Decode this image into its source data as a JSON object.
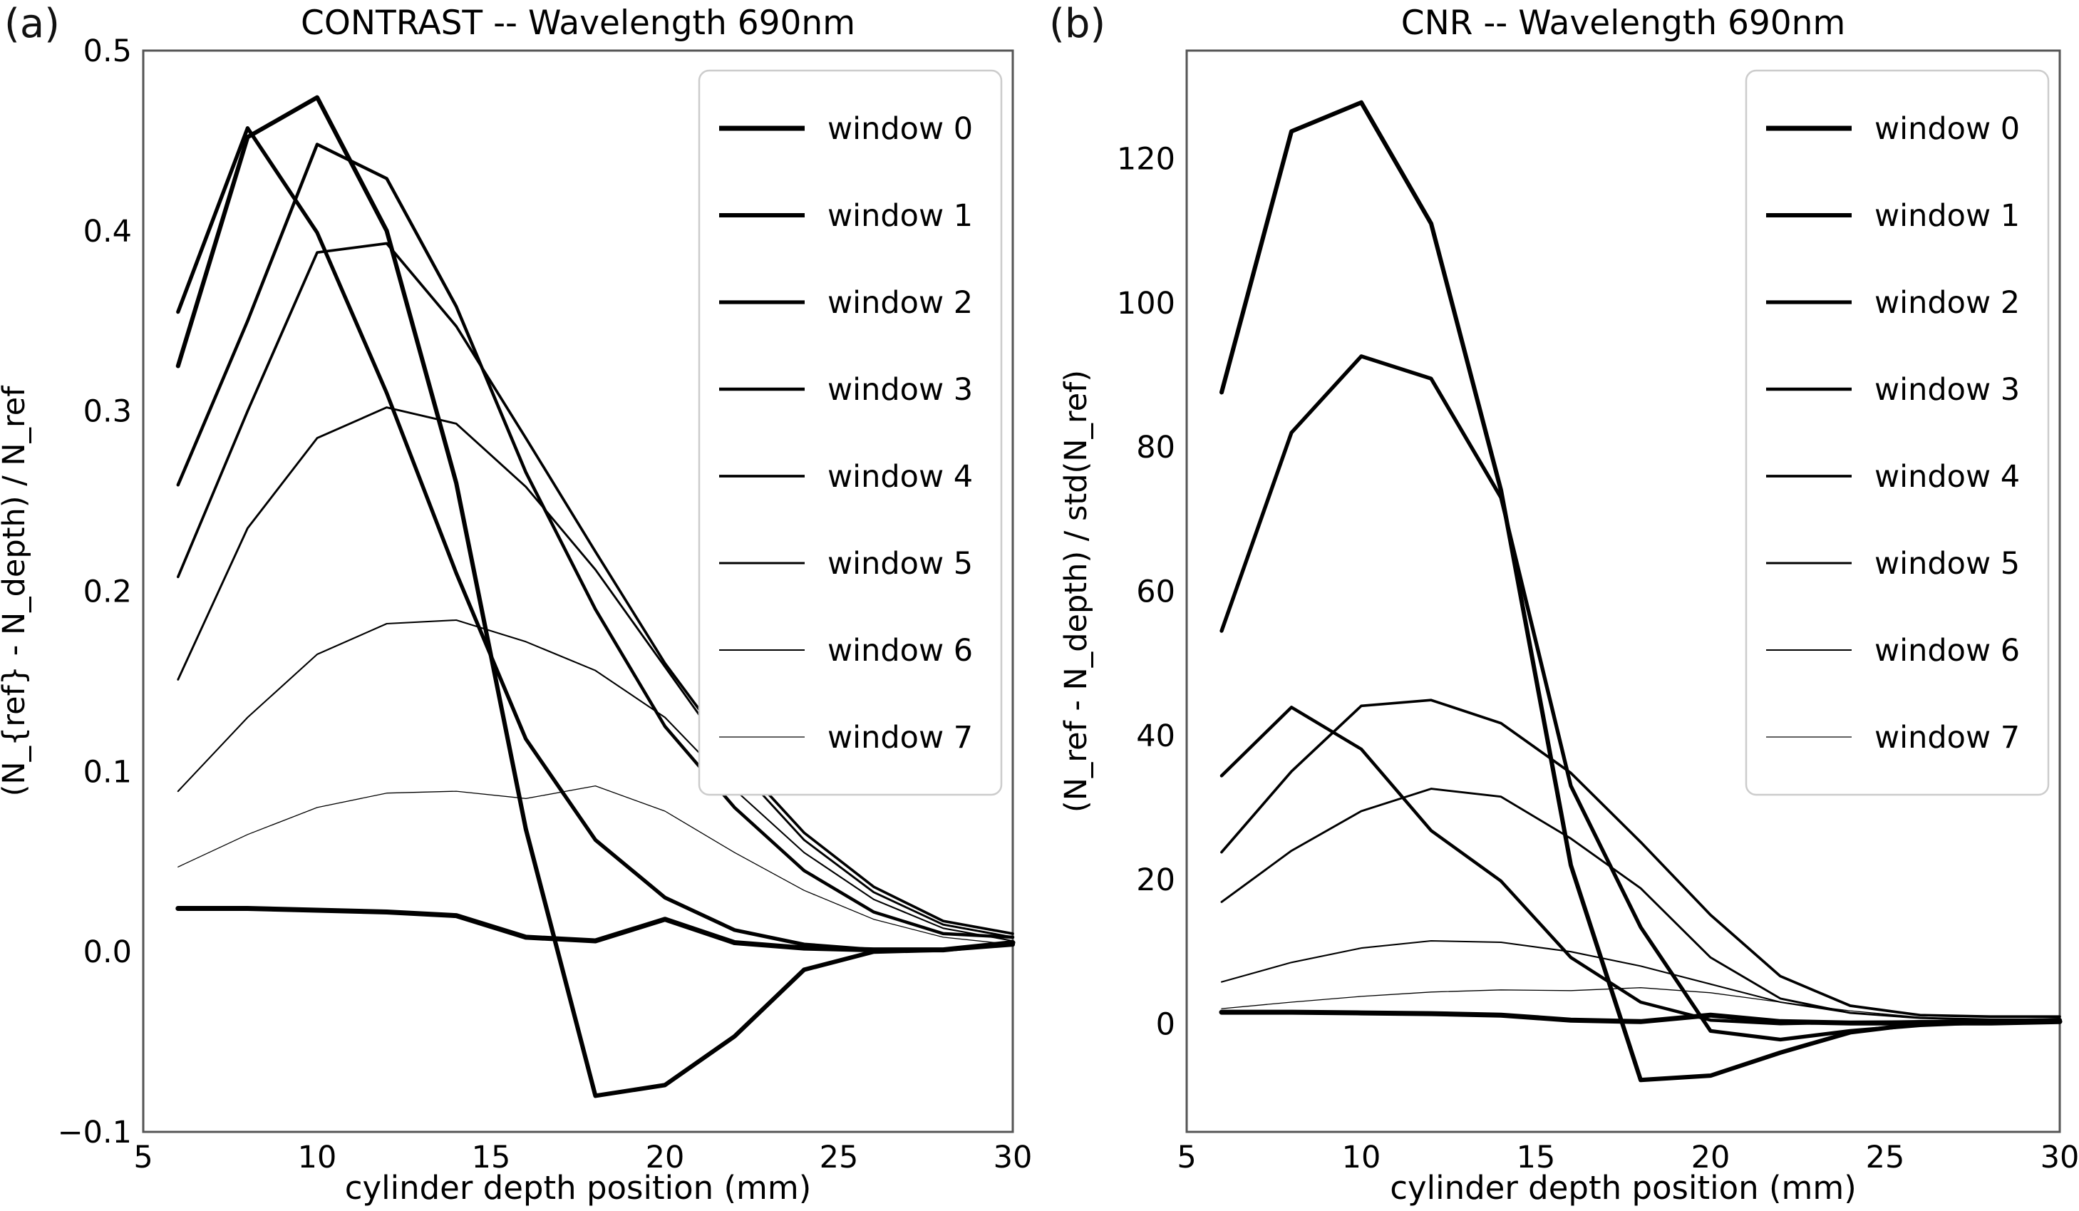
{
  "panels": [
    {
      "label": "(a)"
    },
    {
      "label": "(b)"
    }
  ],
  "colors": {
    "line": "#000000",
    "frame": "#555555",
    "legend_border": "#cccccc",
    "background": "#ffffff"
  },
  "chart_data": [
    {
      "type": "line",
      "title": "CONTRAST -- Wavelength 690nm",
      "xlabel": "cylinder depth position (mm)",
      "ylabel": "(N_{ref} - N_depth) / N_ref",
      "xlim": [
        5,
        30
      ],
      "ylim": [
        -0.1,
        0.5
      ],
      "xticks": [
        5,
        10,
        15,
        20,
        25,
        30
      ],
      "xtick_labels": [
        "5",
        "10",
        "15",
        "20",
        "25",
        "30"
      ],
      "yticks": [
        0.5,
        0.4,
        0.3,
        0.2,
        0.1,
        0.0,
        -0.1
      ],
      "ytick_labels": [
        "0.5",
        "0.4",
        "0.3",
        "0.2",
        "0.1",
        "0.0",
        "−0.1"
      ],
      "grid": false,
      "legend_position": "upper right",
      "x": [
        6,
        8,
        10,
        12,
        14,
        16,
        18,
        20,
        22,
        24,
        26,
        28,
        30
      ],
      "series": [
        {
          "name": "window 0",
          "line_width": 7.0,
          "values": [
            0.024,
            0.024,
            0.023,
            0.022,
            0.02,
            0.008,
            0.006,
            0.018,
            0.005,
            0.002,
            0.001,
            0.001,
            0.005
          ]
        },
        {
          "name": "window 1",
          "line_width": 6.1,
          "values": [
            0.325,
            0.452,
            0.474,
            0.4,
            0.26,
            0.068,
            -0.08,
            -0.074,
            -0.047,
            -0.01,
            0.0,
            0.001,
            0.004
          ]
        },
        {
          "name": "window 2",
          "line_width": 5.3,
          "values": [
            0.355,
            0.457,
            0.399,
            0.31,
            0.21,
            0.118,
            0.062,
            0.03,
            0.012,
            0.004,
            0.001,
            0.001,
            0.004
          ]
        },
        {
          "name": "window 3",
          "line_width": 4.5,
          "values": [
            0.259,
            0.35,
            0.448,
            0.429,
            0.358,
            0.266,
            0.19,
            0.125,
            0.08,
            0.045,
            0.022,
            0.01,
            0.008
          ]
        },
        {
          "name": "window 4",
          "line_width": 3.7,
          "values": [
            0.208,
            0.3,
            0.388,
            0.393,
            0.347,
            0.285,
            0.222,
            0.16,
            0.108,
            0.066,
            0.036,
            0.017,
            0.01
          ]
        },
        {
          "name": "window 5",
          "line_width": 2.9,
          "values": [
            0.151,
            0.235,
            0.285,
            0.302,
            0.293,
            0.258,
            0.212,
            0.158,
            0.104,
            0.062,
            0.033,
            0.015,
            0.008
          ]
        },
        {
          "name": "window 6",
          "line_width": 2.1,
          "values": [
            0.089,
            0.13,
            0.165,
            0.182,
            0.184,
            0.172,
            0.156,
            0.13,
            0.09,
            0.055,
            0.029,
            0.013,
            0.006
          ]
        },
        {
          "name": "window 7",
          "line_width": 1.3,
          "values": [
            0.047,
            0.065,
            0.08,
            0.088,
            0.089,
            0.085,
            0.092,
            0.078,
            0.055,
            0.034,
            0.018,
            0.008,
            0.004
          ]
        }
      ]
    },
    {
      "type": "line",
      "title": "CNR -- Wavelength 690nm",
      "xlabel": "cylinder depth position (mm)",
      "ylabel": "(N_ref - N_depth) / std(N_ref)",
      "xlim": [
        5,
        30
      ],
      "ylim": [
        -15,
        135
      ],
      "xticks": [
        5,
        10,
        15,
        20,
        25,
        30
      ],
      "xtick_labels": [
        "5",
        "10",
        "15",
        "20",
        "25",
        "30"
      ],
      "yticks": [
        120,
        100,
        80,
        60,
        40,
        20,
        0
      ],
      "ytick_labels": [
        "120",
        "100",
        "80",
        "60",
        "40",
        "20",
        "0"
      ],
      "grid": false,
      "legend_position": "upper right",
      "x": [
        6,
        8,
        10,
        12,
        14,
        16,
        18,
        20,
        22,
        24,
        26,
        28,
        30
      ],
      "series": [
        {
          "name": "window 0",
          "line_width": 7.0,
          "values": [
            1.6,
            1.6,
            1.5,
            1.4,
            1.2,
            0.5,
            0.3,
            1.2,
            0.3,
            0.1,
            0.1,
            0.1,
            0.3
          ]
        },
        {
          "name": "window 1",
          "line_width": 6.1,
          "values": [
            87.6,
            123.8,
            127.8,
            111.0,
            74.0,
            22.0,
            -7.8,
            -7.2,
            -4.0,
            -1.2,
            0.0,
            0.3,
            0.5
          ]
        },
        {
          "name": "window 2",
          "line_width": 5.3,
          "values": [
            54.5,
            82.0,
            92.6,
            89.5,
            73.0,
            33.0,
            13.4,
            -1.0,
            -2.2,
            -1.0,
            -0.2,
            0.2,
            0.5
          ]
        },
        {
          "name": "window 3",
          "line_width": 4.5,
          "values": [
            34.4,
            43.9,
            38.1,
            26.8,
            19.8,
            9.2,
            3.0,
            0.5,
            0.0,
            0.2,
            0.3,
            0.4,
            0.6
          ]
        },
        {
          "name": "window 4",
          "line_width": 3.7,
          "values": [
            23.8,
            35.0,
            44.1,
            44.9,
            41.7,
            34.8,
            25.2,
            15.1,
            6.6,
            2.5,
            1.2,
            1.0,
            1.0
          ]
        },
        {
          "name": "window 5",
          "line_width": 2.9,
          "values": [
            16.9,
            24.0,
            29.5,
            32.6,
            31.5,
            25.7,
            18.8,
            9.2,
            3.5,
            1.5,
            0.8,
            0.6,
            0.6
          ]
        },
        {
          "name": "window 6",
          "line_width": 2.1,
          "values": [
            5.8,
            8.5,
            10.5,
            11.5,
            11.3,
            10.0,
            8.0,
            5.5,
            3.0,
            1.5,
            0.8,
            0.5,
            0.4
          ]
        },
        {
          "name": "window 7",
          "line_width": 1.3,
          "values": [
            2.1,
            3.0,
            3.8,
            4.4,
            4.7,
            4.6,
            5.0,
            4.3,
            3.0,
            1.8,
            0.9,
            0.5,
            0.3
          ]
        }
      ]
    }
  ]
}
